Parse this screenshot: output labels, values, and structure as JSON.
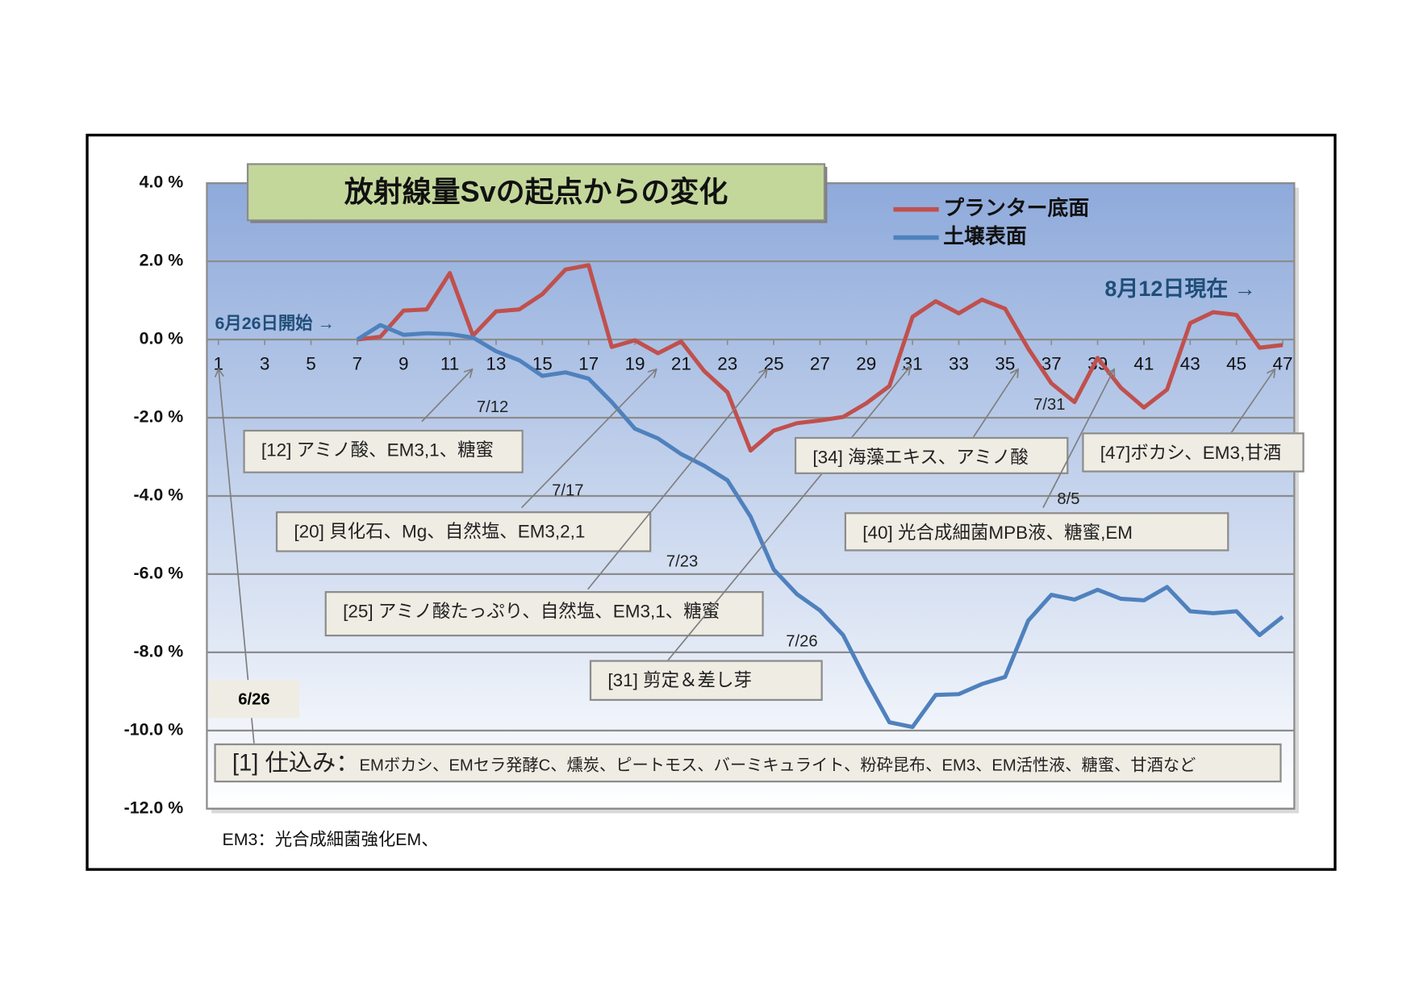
{
  "chart_data": {
    "type": "line",
    "title": "放射線量Svの起点からの変化",
    "x": [
      1,
      2,
      3,
      4,
      5,
      6,
      7,
      8,
      9,
      10,
      11,
      12,
      13,
      14,
      15,
      16,
      17,
      18,
      19,
      20,
      21,
      22,
      23,
      24,
      25,
      26,
      27,
      28,
      29,
      30,
      31,
      32,
      33,
      34,
      35,
      36,
      37,
      38,
      39,
      40,
      41,
      42,
      43,
      44,
      45,
      46,
      47
    ],
    "xlim": [
      0.5,
      47.5
    ],
    "xticks": [
      1,
      3,
      5,
      7,
      9,
      11,
      13,
      15,
      17,
      19,
      21,
      23,
      25,
      27,
      29,
      31,
      33,
      35,
      37,
      39,
      41,
      43,
      45,
      47
    ],
    "ylim": [
      -12,
      4
    ],
    "yticks": [
      {
        "value": 4,
        "label": "4.0 %"
      },
      {
        "value": 2,
        "label": "2.0 %"
      },
      {
        "value": 0,
        "label": "0.0 %"
      },
      {
        "value": -2,
        "label": "-2.0 %"
      },
      {
        "value": -4,
        "label": "-4.0 %"
      },
      {
        "value": -6,
        "label": "-6.0 %"
      },
      {
        "value": -8,
        "label": "-8.0 %"
      },
      {
        "value": -10,
        "label": "-10.0 %"
      },
      {
        "value": -12,
        "label": "-12.0 %"
      }
    ],
    "grid": true,
    "legend": "top-right",
    "series": [
      {
        "name": "プランター底面",
        "color": "#c0504d",
        "values": [
          null,
          null,
          null,
          null,
          null,
          null,
          0,
          0.07,
          0.74,
          0.77,
          1.7,
          0.1,
          0.72,
          0.77,
          1.16,
          1.79,
          1.9,
          -0.19,
          -0.02,
          -0.35,
          -0.05,
          -0.81,
          -1.35,
          -2.84,
          -2.33,
          -2.14,
          -2.07,
          -1.98,
          -1.63,
          -1.19,
          0.58,
          0.98,
          0.67,
          1.02,
          0.79,
          -0.23,
          -1.12,
          -1.6,
          -0.47,
          -1.23,
          -1.74,
          -1.28,
          0.42,
          0.7,
          0.63,
          -0.21,
          -0.14
        ]
      },
      {
        "name": "土壌表面",
        "color": "#4f81bd",
        "values": [
          null,
          null,
          null,
          null,
          null,
          null,
          0,
          0.37,
          0.12,
          0.16,
          0.14,
          0.05,
          -0.3,
          -0.53,
          -0.93,
          -0.84,
          -1.0,
          -1.6,
          -2.28,
          -2.53,
          -2.93,
          -3.23,
          -3.6,
          -4.53,
          -5.88,
          -6.51,
          -6.93,
          -7.56,
          -8.72,
          -9.79,
          -9.91,
          -9.09,
          -9.07,
          -8.81,
          -8.63,
          -7.19,
          -6.53,
          -6.65,
          -6.4,
          -6.63,
          -6.67,
          -6.33,
          -6.95,
          -7.0,
          -6.95,
          -7.56,
          -7.09
        ]
      }
    ],
    "start_note": "6月26日開始 →",
    "current_note": "8月12日現在 →",
    "annotations": [
      {
        "text": "[12] アミノ酸、EM3,1、糖蜜",
        "date": "7/12"
      },
      {
        "text": "[20] 貝化石、Mg、自然塩、EM3,2,1",
        "date": "7/17"
      },
      {
        "text": "[25] アミノ酸たっぷり、自然塩、EM3,1、糖蜜",
        "date": "7/23"
      },
      {
        "text": "[31] 剪定＆差し芽",
        "date": "7/26"
      },
      {
        "text": "[34] 海藻エキス、アミノ酸",
        "date": "7/31"
      },
      {
        "text": "[40] 光合成細菌MPB液、糖蜜,EM",
        "date": "8/5"
      },
      {
        "text": "[47]ボカシ、EM3,甘酒"
      },
      {
        "label": "[1] 仕込み：",
        "text": "EMボカシ、EMセラ発酵C、燻炭、ピートモス、バーミキュライト、粉砕昆布、EM3、EM活性液、糖蜜、甘酒など",
        "date": "6/26"
      }
    ],
    "footnote": "EM3：光合成細菌強化EM、"
  }
}
